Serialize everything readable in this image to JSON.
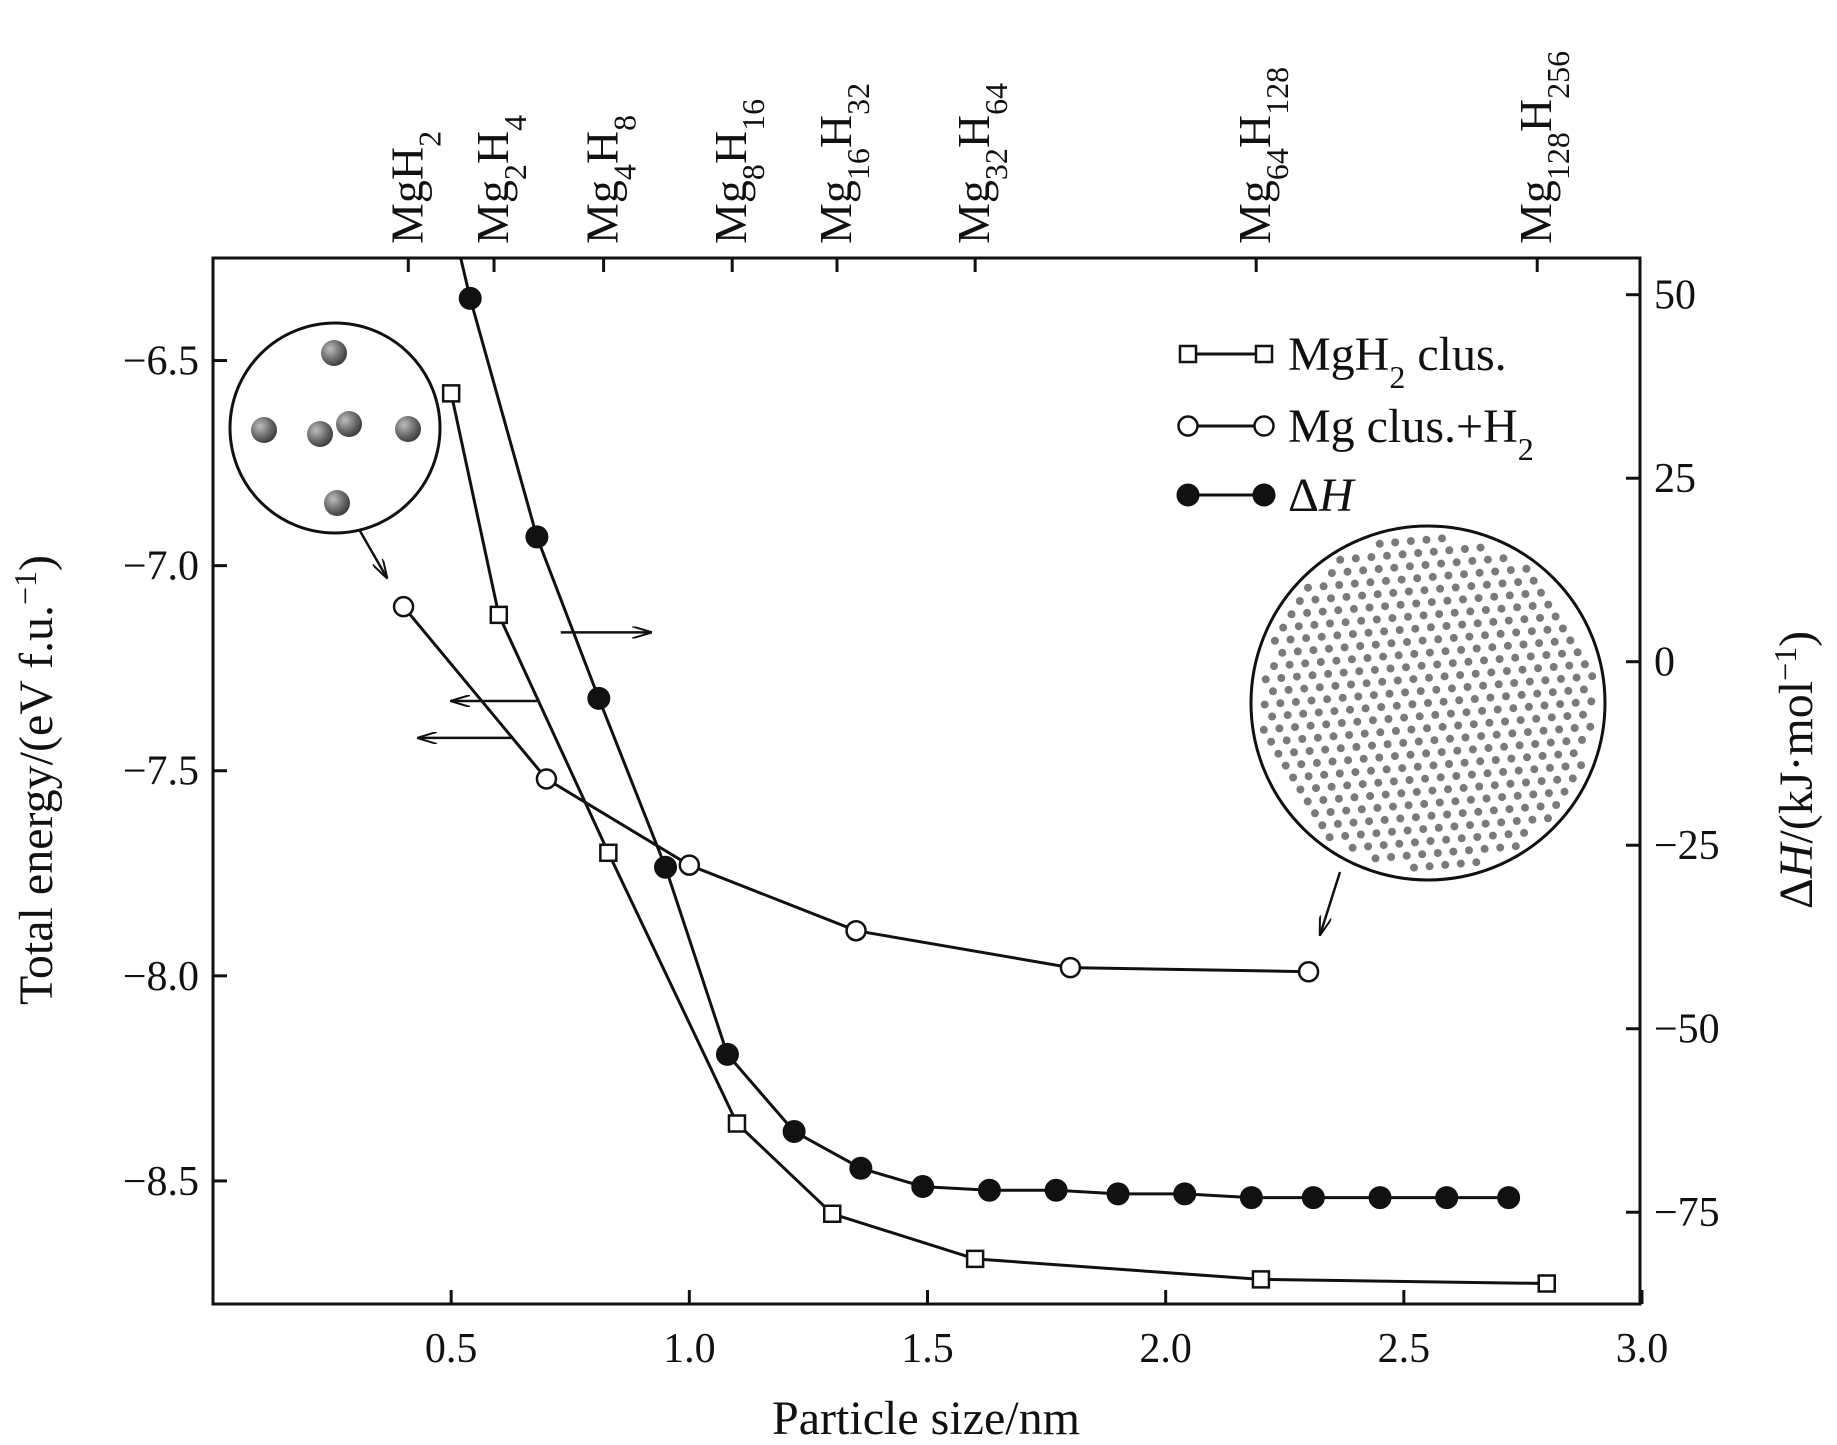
{
  "chart_data": {
    "type": "line",
    "xlabel": "Particle size/nm",
    "ylabel_left": "Total energy/(eV f.u.",
    "ylabel_left_sup": "−1",
    "ylabel_left_end": ")",
    "ylabel_right_prefix": "Δ",
    "ylabel_right_italic": "H",
    "ylabel_right_suffix": "/(kJ·mol",
    "ylabel_right_sup": "−1",
    "ylabel_right_end": ")",
    "xlim": [
      0.0,
      3.0
    ],
    "ylim_left": [
      -8.8,
      -6.25
    ],
    "ylim_right": [
      -87.5,
      55
    ],
    "x_ticks": [
      0.5,
      1.0,
      1.5,
      2.0,
      2.5,
      3.0
    ],
    "x_tick_labels": [
      "0.5",
      "1.0",
      "1.5",
      "2.0",
      "2.5",
      "3.0"
    ],
    "y_left_ticks": [
      -6.5,
      -7.0,
      -7.5,
      -8.0,
      -8.5
    ],
    "y_left_tick_labels": [
      "−6.5",
      "−7.0",
      "−7.5",
      "−8.0",
      "−8.5"
    ],
    "y_right_ticks": [
      50,
      25,
      0,
      -25,
      -50,
      -75
    ],
    "y_right_tick_labels": [
      "50",
      "25",
      "0",
      "−25",
      "−50",
      "−75"
    ],
    "top_axis_labels": [
      {
        "x": 0.41,
        "parts": [
          {
            "t": "MgH"
          },
          {
            "t": "2",
            "sub": true
          }
        ]
      },
      {
        "x": 0.59,
        "parts": [
          {
            "t": "Mg"
          },
          {
            "t": "2",
            "sub": true
          },
          {
            "t": "H"
          },
          {
            "t": "4",
            "sub": true
          }
        ]
      },
      {
        "x": 0.82,
        "parts": [
          {
            "t": "Mg"
          },
          {
            "t": "4",
            "sub": true
          },
          {
            "t": "H"
          },
          {
            "t": "8",
            "sub": true
          }
        ]
      },
      {
        "x": 1.09,
        "parts": [
          {
            "t": "Mg"
          },
          {
            "t": "8",
            "sub": true
          },
          {
            "t": "H"
          },
          {
            "t": "16",
            "sub": true
          }
        ]
      },
      {
        "x": 1.31,
        "parts": [
          {
            "t": "Mg"
          },
          {
            "t": "16",
            "sub": true
          },
          {
            "t": "H"
          },
          {
            "t": "32",
            "sub": true
          }
        ]
      },
      {
        "x": 1.6,
        "parts": [
          {
            "t": "Mg"
          },
          {
            "t": "32",
            "sub": true
          },
          {
            "t": "H"
          },
          {
            "t": "64",
            "sub": true
          }
        ]
      },
      {
        "x": 2.19,
        "parts": [
          {
            "t": "Mg"
          },
          {
            "t": "64",
            "sub": true
          },
          {
            "t": "H"
          },
          {
            "t": "128",
            "sub": true
          }
        ]
      },
      {
        "x": 2.78,
        "parts": [
          {
            "t": "Mg"
          },
          {
            "t": "128",
            "sub": true
          },
          {
            "t": "H"
          },
          {
            "t": "256",
            "sub": true
          }
        ]
      }
    ],
    "series": [
      {
        "name": "MgH2 clus.",
        "legend_parts": [
          {
            "t": "MgH"
          },
          {
            "t": "2",
            "sub": true
          },
          {
            "t": " clus."
          }
        ],
        "axis": "left",
        "marker": "open-square",
        "x": [
          0.5,
          0.6,
          0.83,
          1.1,
          1.3,
          1.6,
          2.2,
          2.8
        ],
        "y": [
          -6.58,
          -7.12,
          -7.7,
          -8.36,
          -8.58,
          -8.69,
          -8.74,
          -8.75
        ]
      },
      {
        "name": "Mg clus.+H2",
        "legend_parts": [
          {
            "t": "Mg clus.+H"
          },
          {
            "t": "2",
            "sub": true
          }
        ],
        "axis": "left",
        "marker": "open-circle",
        "x": [
          0.4,
          0.7,
          1.0,
          1.35,
          1.8,
          2.3
        ],
        "y": [
          -7.1,
          -7.52,
          -7.73,
          -7.89,
          -7.98,
          -7.99
        ]
      },
      {
        "name": "ΔH",
        "legend_parts": [
          {
            "t": "Δ"
          },
          {
            "t": "H",
            "italic": true
          }
        ],
        "axis": "right",
        "marker": "filled-circle",
        "x": [
          0.54,
          0.68,
          0.81,
          0.95,
          1.08,
          1.22,
          1.36,
          1.49,
          1.63,
          1.77,
          1.9,
          2.04,
          2.18,
          2.31,
          2.45,
          2.59,
          2.72
        ],
        "y": [
          49.5,
          17,
          -5,
          -28,
          -53.5,
          -64,
          -69,
          -71.5,
          -72,
          -72,
          -72.5,
          -72.5,
          -73,
          -73,
          -73,
          -73,
          -73
        ],
        "offscreen_lead": {
          "x": 0.52,
          "y": 55
        }
      }
    ],
    "annotations": [
      {
        "type": "arrow",
        "axis": "right",
        "x1": 0.73,
        "y1": 4,
        "x2": 0.92,
        "y2": 4,
        "meaning": "points to right axis"
      },
      {
        "type": "arrow",
        "axis": "left",
        "x1": 0.68,
        "y1": -7.33,
        "x2": 0.5,
        "y2": -7.33,
        "meaning": "points to left axis"
      },
      {
        "type": "arrow",
        "axis": "left",
        "x1": 0.63,
        "y1": -7.42,
        "x2": 0.43,
        "y2": -7.42,
        "meaning": "points to left axis"
      },
      {
        "type": "inset",
        "name": "small-cluster-inset",
        "depicts": "MgH2 cluster (6 atoms)",
        "points_to": "Mg clus.+H2 at 0.4 nm"
      },
      {
        "type": "inset",
        "name": "large-cluster-inset",
        "depicts": "Mg128H256 cluster",
        "points_to": "Mg clus.+H2 at 2.3 nm"
      }
    ],
    "legend_position": "top-right"
  }
}
